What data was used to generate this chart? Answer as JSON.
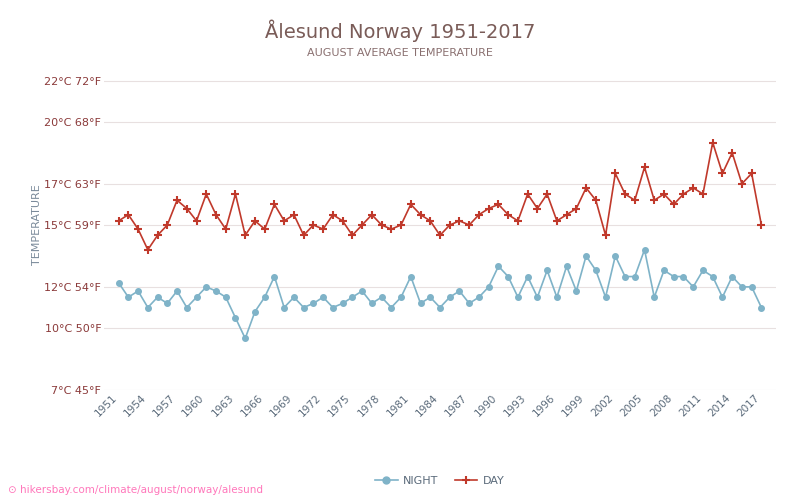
{
  "title": "Ålesund Norway 1951-2017",
  "subtitle": "AUGUST AVERAGE TEMPERATURE",
  "ylabel": "TEMPERATURE",
  "watermark": "hikersbay.com/climate/august/norway/alesund",
  "years": [
    1951,
    1952,
    1953,
    1954,
    1955,
    1956,
    1957,
    1958,
    1959,
    1960,
    1961,
    1962,
    1963,
    1964,
    1965,
    1966,
    1967,
    1968,
    1969,
    1970,
    1971,
    1972,
    1973,
    1974,
    1975,
    1976,
    1977,
    1978,
    1979,
    1980,
    1981,
    1982,
    1983,
    1984,
    1985,
    1986,
    1987,
    1988,
    1989,
    1990,
    1991,
    1992,
    1993,
    1994,
    1995,
    1996,
    1997,
    1998,
    1999,
    2000,
    2001,
    2002,
    2003,
    2004,
    2005,
    2006,
    2007,
    2008,
    2009,
    2010,
    2011,
    2012,
    2013,
    2014,
    2015,
    2016,
    2017
  ],
  "day_temps": [
    15.2,
    15.5,
    14.8,
    13.8,
    14.5,
    15.0,
    16.2,
    15.8,
    15.2,
    16.5,
    15.5,
    14.8,
    16.5,
    14.5,
    15.2,
    14.8,
    16.0,
    15.2,
    15.5,
    14.5,
    15.0,
    14.8,
    15.5,
    15.2,
    14.5,
    15.0,
    15.5,
    15.0,
    14.8,
    15.0,
    16.0,
    15.5,
    15.2,
    14.5,
    15.0,
    15.2,
    15.0,
    15.5,
    15.8,
    16.0,
    15.5,
    15.2,
    16.5,
    15.8,
    16.5,
    15.2,
    15.5,
    15.8,
    16.8,
    16.2,
    14.5,
    17.5,
    16.5,
    16.2,
    17.8,
    16.2,
    16.5,
    16.0,
    16.5,
    16.8,
    16.5,
    19.0,
    17.5,
    18.5,
    17.0,
    17.5,
    15.0
  ],
  "night_temps": [
    12.2,
    11.5,
    11.8,
    11.0,
    11.5,
    11.2,
    11.8,
    11.0,
    11.5,
    12.0,
    11.8,
    11.5,
    10.5,
    9.5,
    10.8,
    11.5,
    12.5,
    11.0,
    11.5,
    11.0,
    11.2,
    11.5,
    11.0,
    11.2,
    11.5,
    11.8,
    11.2,
    11.5,
    11.0,
    11.5,
    12.5,
    11.2,
    11.5,
    11.0,
    11.5,
    11.8,
    11.2,
    11.5,
    12.0,
    13.0,
    12.5,
    11.5,
    12.5,
    11.5,
    12.8,
    11.5,
    13.0,
    11.8,
    13.5,
    12.8,
    11.5,
    13.5,
    12.5,
    12.5,
    13.8,
    11.5,
    12.8,
    12.5,
    12.5,
    12.0,
    12.8,
    12.5,
    11.5,
    12.5,
    12.0,
    12.0,
    11.0
  ],
  "yticks_c": [
    7,
    10,
    12,
    15,
    17,
    20,
    22
  ],
  "yticks_f": [
    45,
    50,
    54,
    59,
    63,
    68,
    72
  ],
  "ylim": [
    7,
    23
  ],
  "day_color": "#c0392b",
  "night_color": "#7fb3c8",
  "title_color": "#7a5c58",
  "subtitle_color": "#8a7070",
  "axis_color": "#b0a0a0",
  "grid_color": "#e8e0e0",
  "ylabel_color": "#7a8a9a",
  "watermark_color": "#ff69b4",
  "background_color": "#ffffff"
}
